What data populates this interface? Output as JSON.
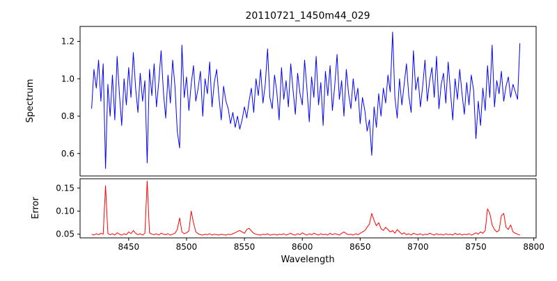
{
  "figure": {
    "title": "20110721_1450m44_029",
    "background": "#ffffff"
  },
  "chart_data": [
    {
      "type": "line",
      "title": "20110721_1450m44_029",
      "xlabel": "",
      "ylabel": "Spectrum",
      "xlim": [
        8408,
        8802
      ],
      "ylim": [
        0.48,
        1.28
      ],
      "grid": false,
      "legend": "none",
      "yticks": {
        "values": [
          0.6,
          0.8,
          1.0,
          1.2
        ],
        "labels": [
          "0.6",
          "0.8",
          "1.0",
          "1.2"
        ]
      },
      "series": [
        {
          "name": "Spectrum",
          "color": "#0000ff",
          "x_start": 8418,
          "x_step": 2,
          "values": [
            0.84,
            1.05,
            0.95,
            1.1,
            0.88,
            1.08,
            0.52,
            0.97,
            0.8,
            1.02,
            0.78,
            1.12,
            0.92,
            0.75,
            1.0,
            0.86,
            1.06,
            0.9,
            1.14,
            0.95,
            0.82,
            1.03,
            0.88,
            0.99,
            0.55,
            1.05,
            0.91,
            1.08,
            0.85,
            0.98,
            1.15,
            0.93,
            0.79,
            1.02,
            0.87,
            1.1,
            0.96,
            0.72,
            0.63,
            1.18,
            0.9,
            1.01,
            0.83,
            0.97,
            1.07,
            0.88,
            0.95,
            1.04,
            0.8,
            1.0,
            0.92,
            1.09,
            0.85,
            0.98,
            1.05,
            0.9,
            0.78,
            0.96,
            0.88,
            0.84,
            0.76,
            0.82,
            0.74,
            0.8,
            0.73,
            0.78,
            0.85,
            0.79,
            0.88,
            0.95,
            0.82,
            1.0,
            0.91,
            1.05,
            0.87,
            0.97,
            1.16,
            0.9,
            0.84,
            1.02,
            0.93,
            0.78,
            1.06,
            0.89,
            0.99,
            0.85,
            1.08,
            0.94,
            0.81,
            1.03,
            0.92,
            0.86,
            1.1,
            0.95,
            0.77,
            1.01,
            0.9,
            1.12,
            0.86,
            0.98,
            0.75,
            1.04,
            0.91,
            1.07,
            0.83,
            0.96,
            1.13,
            0.89,
            0.99,
            0.8,
            1.05,
            0.92,
            0.84,
            1.0,
            0.88,
            0.95,
            0.76,
            0.9,
            0.83,
            0.72,
            0.78,
            0.59,
            0.85,
            0.74,
            0.92,
            0.8,
            0.95,
            0.87,
            1.02,
            0.93,
            1.25,
            0.9,
            0.79,
            1.0,
            0.86,
            0.97,
            1.08,
            0.91,
            0.82,
            1.15,
            0.94,
            1.01,
            0.85,
            0.96,
            1.1,
            0.88,
            0.99,
            1.06,
            0.9,
            1.12,
            0.84,
            0.97,
            1.03,
            0.87,
            1.09,
            0.93,
            0.78,
            1.0,
            0.89,
            1.05,
            0.92,
            0.81,
            0.98,
            0.86,
            1.02,
            0.94,
            0.68,
            0.88,
            0.75,
            0.95,
            0.83,
            1.07,
            0.9,
            1.18,
            0.85,
            0.99,
            0.92,
            1.04,
            0.88,
            0.96,
            1.01,
            0.9,
            0.97,
            0.93,
            0.89,
            1.19
          ]
        }
      ]
    },
    {
      "type": "line",
      "title": "",
      "xlabel": "Wavelength",
      "ylabel": "Error",
      "xlim": [
        8408,
        8802
      ],
      "ylim": [
        0.042,
        0.17
      ],
      "grid": false,
      "legend": "none",
      "xticks": {
        "values": [
          8450,
          8500,
          8550,
          8600,
          8650,
          8700,
          8750,
          8800
        ],
        "labels": [
          "8450",
          "8500",
          "8550",
          "8600",
          "8650",
          "8700",
          "8750",
          "8800"
        ]
      },
      "yticks": {
        "values": [
          0.05,
          0.1,
          0.15
        ],
        "labels": [
          "0.05",
          "0.10",
          "0.15"
        ]
      },
      "series": [
        {
          "name": "Error",
          "color": "#ff0000",
          "x_start": 8418,
          "x_step": 2,
          "values": [
            0.05,
            0.048,
            0.051,
            0.049,
            0.052,
            0.05,
            0.155,
            0.052,
            0.049,
            0.051,
            0.048,
            0.053,
            0.05,
            0.048,
            0.051,
            0.049,
            0.055,
            0.051,
            0.058,
            0.052,
            0.049,
            0.051,
            0.048,
            0.052,
            0.165,
            0.053,
            0.05,
            0.049,
            0.051,
            0.048,
            0.052,
            0.05,
            0.049,
            0.051,
            0.048,
            0.05,
            0.052,
            0.06,
            0.085,
            0.055,
            0.051,
            0.053,
            0.057,
            0.1,
            0.075,
            0.055,
            0.051,
            0.049,
            0.048,
            0.05,
            0.049,
            0.051,
            0.048,
            0.05,
            0.049,
            0.048,
            0.05,
            0.049,
            0.048,
            0.05,
            0.049,
            0.051,
            0.053,
            0.056,
            0.058,
            0.055,
            0.052,
            0.06,
            0.063,
            0.057,
            0.052,
            0.05,
            0.049,
            0.048,
            0.05,
            0.049,
            0.051,
            0.048,
            0.049,
            0.05,
            0.048,
            0.05,
            0.049,
            0.051,
            0.048,
            0.05,
            0.052,
            0.049,
            0.048,
            0.051,
            0.049,
            0.053,
            0.05,
            0.048,
            0.051,
            0.049,
            0.052,
            0.05,
            0.048,
            0.051,
            0.049,
            0.05,
            0.048,
            0.052,
            0.049,
            0.051,
            0.05,
            0.048,
            0.052,
            0.055,
            0.051,
            0.049,
            0.05,
            0.048,
            0.051,
            0.049,
            0.052,
            0.055,
            0.058,
            0.065,
            0.072,
            0.095,
            0.08,
            0.068,
            0.075,
            0.062,
            0.058,
            0.065,
            0.06,
            0.055,
            0.058,
            0.052,
            0.06,
            0.055,
            0.05,
            0.053,
            0.049,
            0.051,
            0.048,
            0.052,
            0.05,
            0.049,
            0.051,
            0.048,
            0.05,
            0.049,
            0.052,
            0.05,
            0.048,
            0.051,
            0.049,
            0.05,
            0.048,
            0.051,
            0.049,
            0.05,
            0.048,
            0.052,
            0.049,
            0.051,
            0.048,
            0.05,
            0.049,
            0.051,
            0.048,
            0.05,
            0.053,
            0.05,
            0.055,
            0.052,
            0.058,
            0.105,
            0.095,
            0.07,
            0.06,
            0.055,
            0.058,
            0.09,
            0.095,
            0.065,
            0.06,
            0.07,
            0.055,
            0.052,
            0.05,
            0.048
          ]
        }
      ]
    }
  ]
}
